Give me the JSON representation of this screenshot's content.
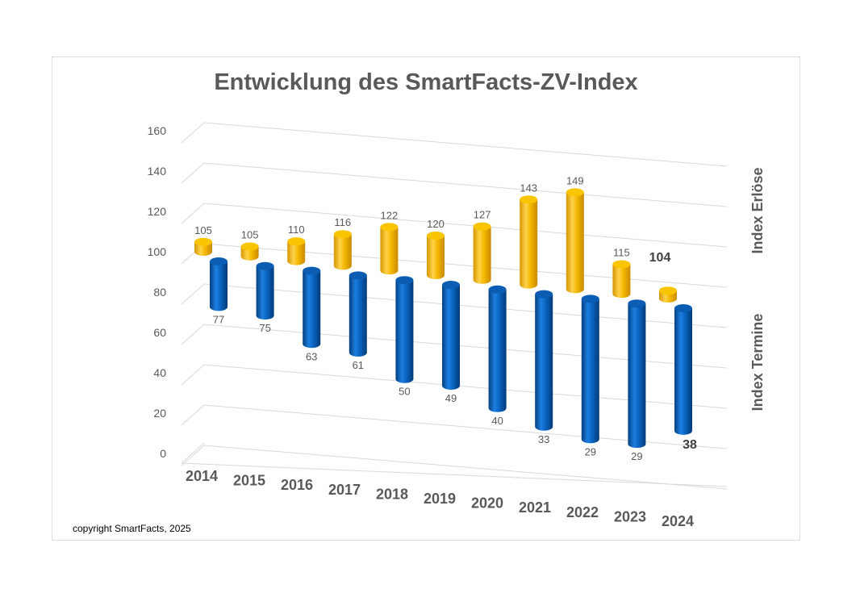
{
  "chart_data": {
    "type": "bar",
    "title": "Entwicklung des SmartFacts-ZV-Index",
    "categories": [
      "2014",
      "2015",
      "2016",
      "2017",
      "2018",
      "2019",
      "2020",
      "2021",
      "2022",
      "2023",
      "2024"
    ],
    "series": [
      {
        "name": "Index Erlöse",
        "color": "#f5b800",
        "values": [
          105,
          105,
          110,
          116,
          122,
          120,
          127,
          143,
          149,
          115,
          104
        ]
      },
      {
        "name": "Index Termine",
        "color": "#0a64c0",
        "values": [
          77,
          75,
          63,
          61,
          50,
          49,
          40,
          33,
          29,
          29,
          38
        ]
      }
    ],
    "yticks": [
      0,
      20,
      40,
      60,
      80,
      100,
      120,
      140,
      160
    ],
    "ylim": [
      0,
      160
    ],
    "grid": true,
    "legend": "right, vertical labels",
    "copyright": "copyright SmartFacts, 2025"
  }
}
